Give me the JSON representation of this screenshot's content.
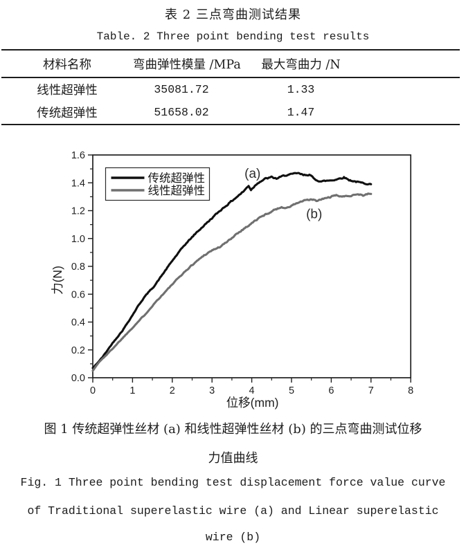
{
  "table": {
    "title_zh": "表 2  三点弯曲测试结果",
    "title_en": "Table. 2  Three point bending test results",
    "columns": [
      "材料名称",
      "弯曲弹性模量 /MPa",
      "最大弯曲力 /N"
    ],
    "rows": [
      {
        "material": "线性超弹性",
        "modulus": "35081.72",
        "max_force": "1.33"
      },
      {
        "material": "传统超弹性",
        "modulus": "51658.02",
        "max_force": "1.47"
      }
    ]
  },
  "figure_caption": {
    "zh_line1": "图 1  传统超弹性丝材 (a) 和线性超弹性丝材 (b) 的三点弯曲测试位移",
    "zh_line2": "力值曲线",
    "en_line1": "Fig. 1  Three point bending test displacement force value curve",
    "en_line2": "of Traditional superelastic wire (a) and Linear superelastic",
    "en_line3": "wire (b)"
  },
  "chart_data": {
    "type": "line",
    "xlabel": "位移(mm)",
    "ylabel": "力(N)",
    "xlim": [
      0,
      8
    ],
    "ylim": [
      0,
      1.6
    ],
    "x_ticks": [
      "0",
      "1",
      "2",
      "3",
      "4",
      "5",
      "6",
      "7",
      "8"
    ],
    "y_ticks": [
      "0.0",
      "0.2",
      "0.4",
      "0.6",
      "0.8",
      "1.0",
      "1.2",
      "1.4",
      "1.6"
    ],
    "x_minor_step": 0.5,
    "y_minor_step": 0.1,
    "grid": false,
    "frame": true,
    "legend_position": "inside-top-left",
    "annotations": [
      {
        "text": "(a)",
        "x": 4.02,
        "y": 1.465
      },
      {
        "text": "(b)",
        "x": 5.57,
        "y": 1.175
      }
    ],
    "series": [
      {
        "name": "传统超弹性",
        "tag": "(a)",
        "color": "#101010",
        "points": [
          [
            0,
            0.07
          ],
          [
            0.1,
            0.1
          ],
          [
            0.25,
            0.15
          ],
          [
            0.5,
            0.25
          ],
          [
            0.75,
            0.34
          ],
          [
            1.0,
            0.45
          ],
          [
            1.15,
            0.52
          ],
          [
            1.3,
            0.58
          ],
          [
            1.42,
            0.62
          ],
          [
            1.55,
            0.66
          ],
          [
            1.7,
            0.72
          ],
          [
            2.0,
            0.84
          ],
          [
            2.3,
            0.95
          ],
          [
            2.6,
            1.04
          ],
          [
            2.9,
            1.12
          ],
          [
            3.2,
            1.2
          ],
          [
            3.5,
            1.27
          ],
          [
            3.8,
            1.34
          ],
          [
            3.92,
            1.38
          ],
          [
            3.98,
            1.35
          ],
          [
            4.15,
            1.4
          ],
          [
            4.35,
            1.43
          ],
          [
            4.5,
            1.44
          ],
          [
            4.62,
            1.43
          ],
          [
            4.85,
            1.455
          ],
          [
            5.0,
            1.46
          ],
          [
            5.15,
            1.47
          ],
          [
            5.3,
            1.455
          ],
          [
            5.45,
            1.46
          ],
          [
            5.58,
            1.425
          ],
          [
            5.75,
            1.41
          ],
          [
            5.9,
            1.415
          ],
          [
            6.05,
            1.42
          ],
          [
            6.2,
            1.43
          ],
          [
            6.32,
            1.44
          ],
          [
            6.45,
            1.42
          ],
          [
            6.6,
            1.41
          ],
          [
            6.75,
            1.4
          ],
          [
            6.9,
            1.395
          ],
          [
            7.0,
            1.39
          ]
        ]
      },
      {
        "name": "线性超弹性",
        "tag": "(b)",
        "color": "#707070",
        "points": [
          [
            0,
            0.05
          ],
          [
            0.15,
            0.11
          ],
          [
            0.4,
            0.18
          ],
          [
            0.7,
            0.27
          ],
          [
            1.0,
            0.36
          ],
          [
            1.3,
            0.45
          ],
          [
            1.6,
            0.55
          ],
          [
            1.9,
            0.64
          ],
          [
            2.2,
            0.73
          ],
          [
            2.5,
            0.81
          ],
          [
            2.8,
            0.88
          ],
          [
            3.0,
            0.915
          ],
          [
            3.2,
            0.94
          ],
          [
            3.4,
            0.98
          ],
          [
            3.6,
            1.03
          ],
          [
            3.8,
            1.07
          ],
          [
            4.0,
            1.11
          ],
          [
            4.2,
            1.15
          ],
          [
            4.4,
            1.18
          ],
          [
            4.6,
            1.21
          ],
          [
            4.75,
            1.225
          ],
          [
            4.9,
            1.22
          ],
          [
            5.1,
            1.25
          ],
          [
            5.3,
            1.27
          ],
          [
            5.5,
            1.28
          ],
          [
            5.65,
            1.27
          ],
          [
            5.8,
            1.285
          ],
          [
            6.0,
            1.3
          ],
          [
            6.15,
            1.31
          ],
          [
            6.3,
            1.3
          ],
          [
            6.5,
            1.31
          ],
          [
            6.65,
            1.32
          ],
          [
            6.8,
            1.31
          ],
          [
            6.95,
            1.32
          ],
          [
            7.0,
            1.32
          ]
        ]
      }
    ]
  },
  "colors": {
    "text": "#1c1c1c",
    "axis": "#1f1f1f",
    "series_a": "#101010",
    "series_b": "#707070"
  }
}
